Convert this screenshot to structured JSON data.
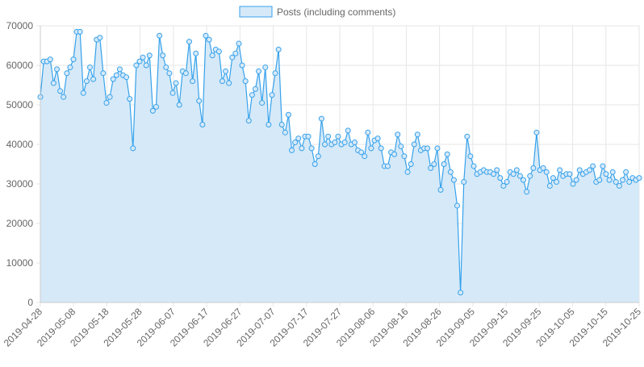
{
  "chart_data": {
    "type": "area",
    "legend": {
      "placement": "top-center",
      "label": "Posts (including comments)"
    },
    "x_tick_labels": [
      "2019-04-28",
      "2019-05-08",
      "2019-05-18",
      "2019-05-28",
      "2019-06-07",
      "2019-06-17",
      "2019-06-27",
      "2019-07-07",
      "2019-07-17",
      "2019-07-27",
      "2019-08-06",
      "2019-08-16",
      "2019-08-26",
      "2019-09-05",
      "2019-09-15",
      "2019-09-25",
      "2019-10-05",
      "2019-10-15",
      "2019-10-25"
    ],
    "x_range": [
      "2019-04-28",
      "2019-10-25"
    ],
    "ylim": [
      0,
      70000
    ],
    "y_ticks": [
      0,
      10000,
      20000,
      30000,
      40000,
      50000,
      60000,
      70000
    ],
    "grid": true,
    "logo": "steem-logo",
    "colors": {
      "line": "#36a2eb",
      "fill": "#d6e9f8",
      "grid": "#e6e6e6",
      "tick_text": "#666666",
      "logo_gray": "#a9b9d1",
      "logo_blue": "#a3c8f2"
    },
    "series": [
      {
        "name": "Posts (including comments)",
        "values": [
          52000,
          61000,
          61000,
          61500,
          55500,
          59000,
          53500,
          52000,
          58000,
          59500,
          61500,
          68500,
          68500,
          53000,
          56000,
          59500,
          56500,
          66500,
          67000,
          58000,
          50500,
          52000,
          56500,
          57500,
          59000,
          57500,
          57000,
          51500,
          39000,
          60000,
          61000,
          62000,
          60000,
          62500,
          48500,
          49500,
          67500,
          62500,
          59500,
          58000,
          53000,
          55500,
          50000,
          58500,
          58000,
          66000,
          56000,
          63000,
          51000,
          45000,
          67500,
          66500,
          62500,
          64000,
          63500,
          56000,
          58500,
          55500,
          62000,
          63000,
          65500,
          60000,
          56000,
          46000,
          52500,
          54000,
          58500,
          50500,
          59500,
          45000,
          52500,
          58000,
          64000,
          45000,
          43000,
          47500,
          38500,
          40500,
          41500,
          39000,
          42000,
          42000,
          39000,
          35000,
          37000,
          46500,
          40000,
          42000,
          40000,
          40500,
          42000,
          40000,
          40500,
          43500,
          40000,
          40500,
          38500,
          38000,
          37000,
          43000,
          39000,
          41000,
          41500,
          39000,
          34500,
          34500,
          38000,
          37500,
          42500,
          39500,
          37000,
          33000,
          35000,
          40000,
          42500,
          38500,
          39000,
          39000,
          34000,
          35000,
          39000,
          28500,
          35000,
          37500,
          33000,
          31000,
          24500,
          2500,
          30500,
          42000,
          37000,
          34500,
          32500,
          33000,
          33500,
          33000,
          33000,
          32500,
          33500,
          31500,
          29500,
          30500,
          33000,
          32500,
          33500,
          32000,
          31000,
          28000,
          32000,
          34000,
          43000,
          33500,
          34000,
          33000,
          29500,
          31500,
          30500,
          33500,
          32000,
          32500,
          32500,
          30000,
          31000,
          33500,
          32500,
          33000,
          33500,
          34500,
          30500,
          31000,
          34500,
          32500,
          31000,
          33000,
          30500,
          29500,
          31000,
          33000,
          30500,
          31500,
          31000,
          31500
        ]
      }
    ]
  }
}
